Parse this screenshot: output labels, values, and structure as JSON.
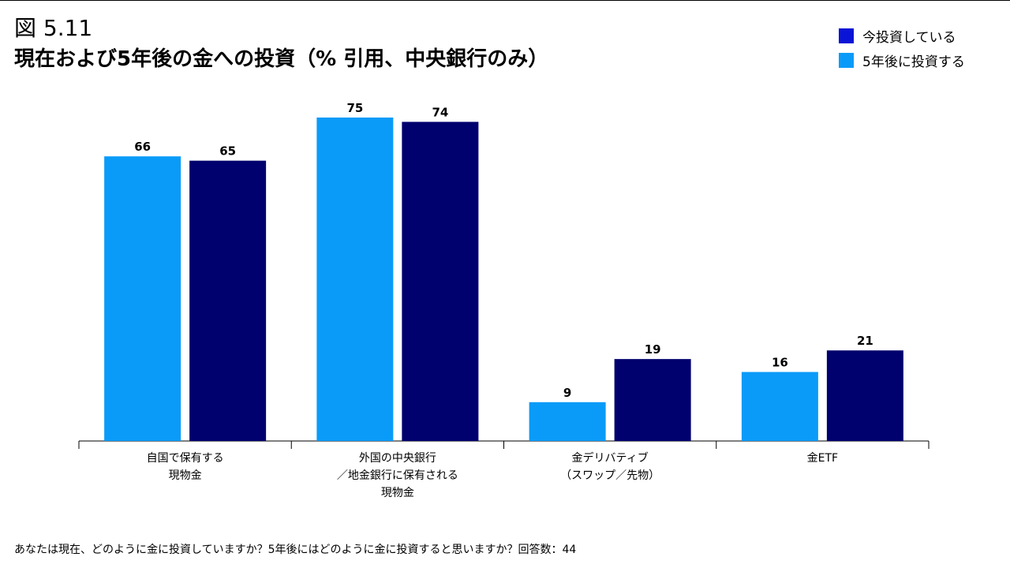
{
  "figure_label": "図 5.11",
  "title": "現在および5年後の金への投資（% 引用、中央銀行のみ）",
  "footnote": "あなたは現在、どのように金に投資していますか？5年後にはどのように金に投資すると思いますか？回答数：44",
  "legend": [
    {
      "label": "今投資している",
      "color": "#0a14d6"
    },
    {
      "label": "5年後に投資する",
      "color": "#0a9bf8"
    }
  ],
  "chart_data": {
    "type": "bar",
    "title": "現在および5年後の金への投資（% 引用、中央銀行のみ）",
    "categories": [
      [
        "自国で保有する",
        "現物金"
      ],
      [
        "外国の中央銀行",
        "／地金銀行に保有される",
        "現物金"
      ],
      [
        "金デリバティブ",
        "（スワップ／先物）"
      ],
      [
        "金ETF"
      ]
    ],
    "series": [
      {
        "color": "#0a9bf8",
        "values": [
          66,
          75,
          9,
          16
        ]
      },
      {
        "color": "#00006e",
        "values": [
          65,
          74,
          19,
          21
        ]
      }
    ],
    "ylim": [
      0,
      75
    ],
    "grid": false,
    "legend_position": "top-right"
  }
}
